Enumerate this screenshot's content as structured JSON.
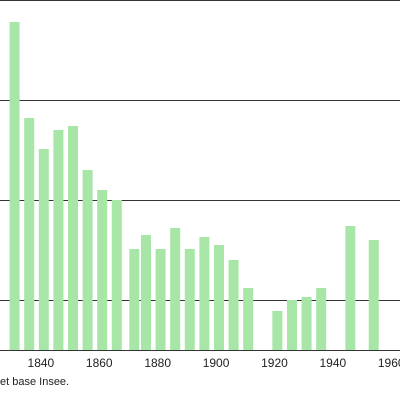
{
  "chart_data": {
    "type": "bar",
    "x": [
      1831,
      1836,
      1841,
      1846,
      1851,
      1856,
      1861,
      1866,
      1872,
      1876,
      1881,
      1886,
      1891,
      1896,
      1901,
      1906,
      1911,
      1921,
      1926,
      1931,
      1936,
      1946,
      1954
    ],
    "values": [
      978,
      882,
      851,
      870,
      874,
      830,
      810,
      800,
      751,
      765,
      751,
      772,
      751,
      763,
      755,
      740,
      712,
      689,
      700,
      703,
      712,
      774,
      760
    ],
    "ylim": [
      650,
      1000
    ],
    "x_ticks": [
      "1840",
      "1860",
      "1880",
      "1900",
      "1920",
      "1940",
      "1960"
    ],
    "grid": true,
    "colors": {
      "bar": "#a8e6a8",
      "grid": "#333333"
    }
  },
  "source_text": "et base Insee."
}
